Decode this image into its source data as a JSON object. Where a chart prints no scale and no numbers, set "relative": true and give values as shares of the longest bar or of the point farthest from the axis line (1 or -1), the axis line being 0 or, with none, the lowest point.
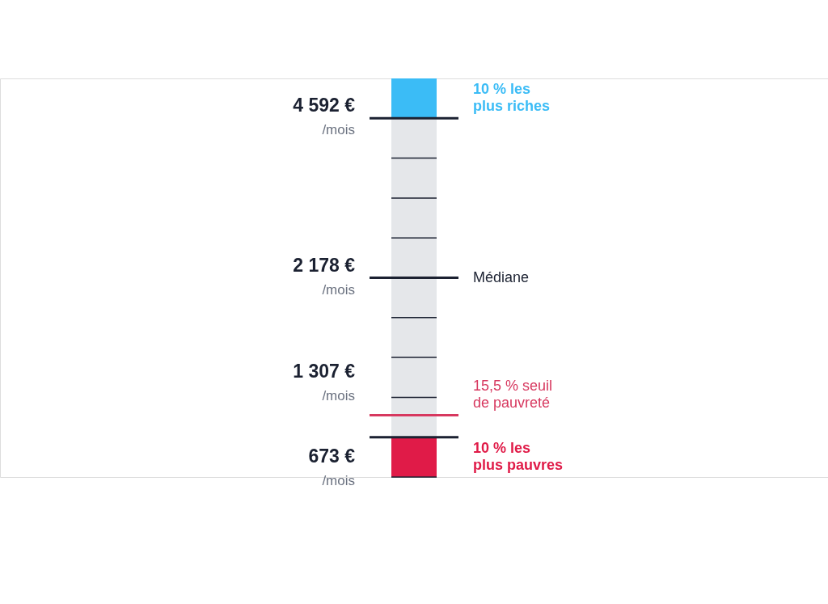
{
  "chart_data": {
    "type": "bar",
    "stacked": true,
    "relative": true,
    "categories": [
      null
    ],
    "series": [
      {
        "name": "10 % les plus pauvres",
        "color": "#e01b48",
        "values": [
          0.1
        ]
      },
      {
        "color": "#e5e7ea",
        "values": [
          0.1
        ]
      },
      {
        "color": "#e5e7ea",
        "values": [
          0.1
        ]
      },
      {
        "color": "#e5e7ea",
        "values": [
          0.1
        ]
      },
      {
        "color": "#e5e7ea",
        "values": [
          0.1
        ]
      },
      {
        "color": "#e5e7ea",
        "values": [
          0.1
        ]
      },
      {
        "color": "#e5e7ea",
        "values": [
          0.1
        ]
      },
      {
        "color": "#e5e7ea",
        "values": [
          0.1
        ]
      },
      {
        "color": "#e5e7ea",
        "values": [
          0.1
        ]
      },
      {
        "name": "10 % les plus riches",
        "color": "#3bbcf6",
        "values": [
          0.1
        ]
      }
    ],
    "ref_lines": [
      {
        "axis": "y",
        "value": 0.9,
        "color": "#1b2131"
      },
      {
        "axis": "y",
        "value": 0.5,
        "label": "Médiane",
        "color": "#1b2131"
      },
      {
        "axis": "y",
        "value": 0.155,
        "label": "15,5 % seuil de pauvreté",
        "color": "#d7385f"
      },
      {
        "axis": "y",
        "value": 0.1,
        "color": "#1b2131"
      }
    ],
    "annotations": [
      "4 592 € /mois",
      "2 178 € /mois",
      "1 307 € /mois",
      "673 € /mois"
    ]
  }
}
